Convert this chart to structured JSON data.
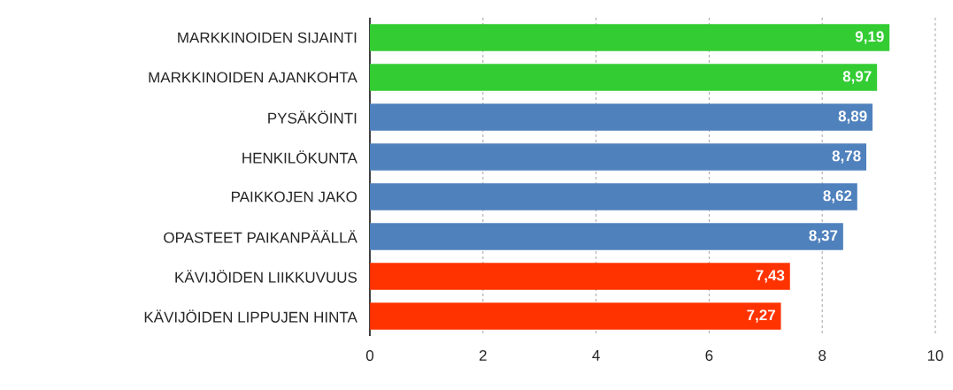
{
  "chart_data": {
    "type": "bar",
    "orientation": "horizontal",
    "categories": [
      "MARKKINOIDEN SIJAINTI",
      "MARKKINOIDEN AJANKOHTA",
      "PYSÄKÖINTI",
      "HENKILÖKUNTA",
      "PAIKKOJEN JAKO",
      "OPASTEET PAIKANPÄÄLLÄ",
      "KÄVIJÖIDEN LIIKKUVUUS",
      "KÄVIJÖIDEN LIPPUJEN HINTA"
    ],
    "values": [
      9.19,
      8.97,
      8.89,
      8.78,
      8.62,
      8.37,
      7.43,
      7.27
    ],
    "value_labels": [
      "9,19",
      "8,97",
      "8,89",
      "8,78",
      "8,62",
      "8,37",
      "7,43",
      "7,27"
    ],
    "colors": [
      "#33cc33",
      "#33cc33",
      "#4f81bd",
      "#4f81bd",
      "#4f81bd",
      "#4f81bd",
      "#ff3300",
      "#ff3300"
    ],
    "xlim": [
      0,
      10
    ],
    "xticks": [
      0,
      2,
      4,
      6,
      8,
      10
    ],
    "grid": "x"
  }
}
